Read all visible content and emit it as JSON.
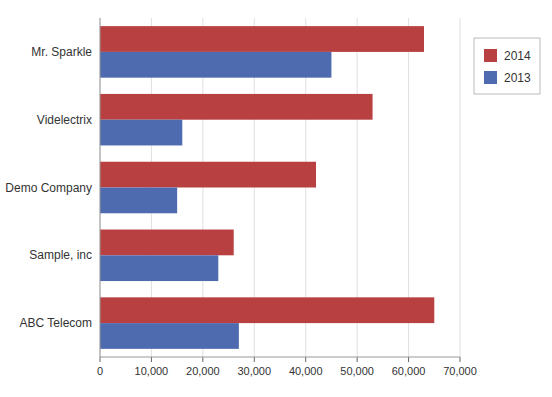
{
  "chart_data": {
    "type": "bar",
    "orientation": "horizontal",
    "categories": [
      "ABC Telecom",
      "Sample, inc",
      "Demo Company",
      "Videlectrix",
      "Mr. Sparkle"
    ],
    "series": [
      {
        "name": "2014",
        "color": "#b94040",
        "values": [
          65000,
          26000,
          42000,
          53000,
          63000
        ]
      },
      {
        "name": "2013",
        "color": "#4f6baf",
        "values": [
          27000,
          23000,
          15000,
          16000,
          45000
        ]
      }
    ],
    "xlim": [
      0,
      70000
    ],
    "xticks": [
      0,
      {
        "value": 10000,
        "label": "10,000"
      },
      {
        "value": 20000,
        "label": "20,000"
      },
      {
        "value": 30000,
        "label": "30,000"
      },
      {
        "value": 40000,
        "label": "40,000"
      },
      {
        "value": 50000,
        "label": "50,000"
      },
      {
        "value": 60000,
        "label": "60,000"
      },
      {
        "value": 70000,
        "label": "70,000"
      }
    ],
    "grid": true,
    "legend": "right"
  }
}
